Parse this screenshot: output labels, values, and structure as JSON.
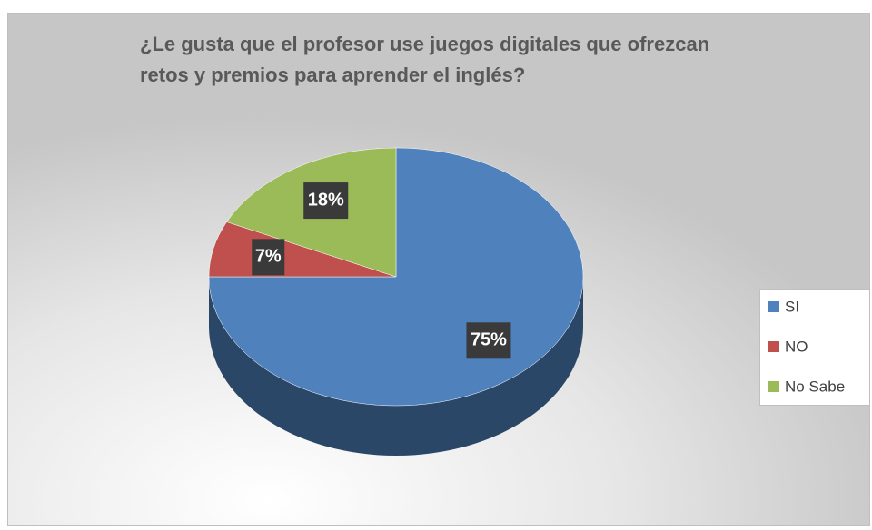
{
  "chart_data": {
    "type": "pie",
    "title": "¿Le gusta que el profesor use juegos digitales que ofrezcan retos y premios para aprender el inglés?",
    "categories": [
      "SI",
      "NO",
      "No Sabe"
    ],
    "values": [
      75,
      7,
      18
    ],
    "value_labels": [
      "75%",
      "7%",
      "18%"
    ],
    "colors": [
      "#4f81bd",
      "#c0504d",
      "#9bbb59"
    ],
    "legend": "right"
  }
}
